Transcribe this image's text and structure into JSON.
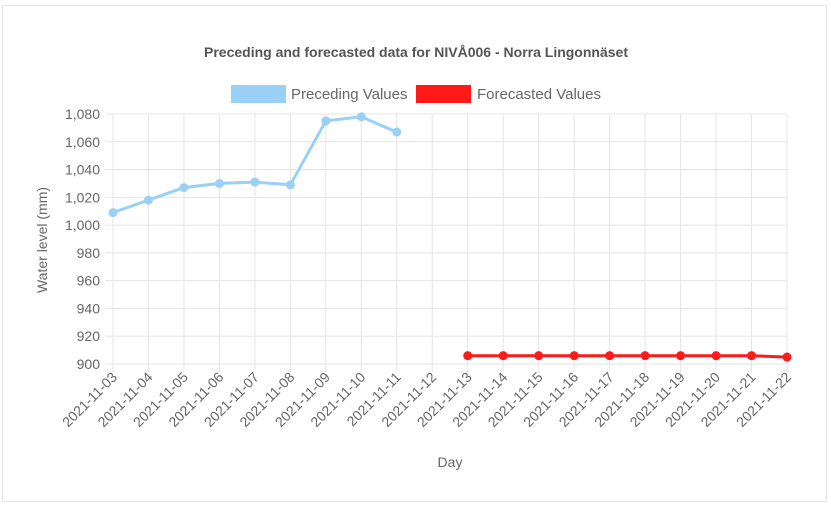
{
  "chart_data": {
    "type": "line",
    "title": "Preceding and forecasted data for NIVÅ006 - Norra Lingonnäset",
    "xlabel": "Day",
    "ylabel": "Water level (mm)",
    "ylim": [
      900,
      1080
    ],
    "y_ticks": [
      "900",
      "920",
      "940",
      "960",
      "980",
      "1,000",
      "1,020",
      "1,040",
      "1,060",
      "1,080"
    ],
    "grid": true,
    "legend_position": "top",
    "categories": [
      "2021-11-03",
      "2021-11-04",
      "2021-11-05",
      "2021-11-06",
      "2021-11-07",
      "2021-11-08",
      "2021-11-09",
      "2021-11-10",
      "2021-11-11",
      "2021-11-12",
      "2021-11-13",
      "2021-11-14",
      "2021-11-15",
      "2021-11-16",
      "2021-11-17",
      "2021-11-18",
      "2021-11-19",
      "2021-11-20",
      "2021-11-21",
      "2021-11-22"
    ],
    "series": [
      {
        "name": "Preceding Values",
        "color": "#9ad0f5",
        "values": [
          1009,
          1018,
          1027,
          1030,
          1031,
          1029,
          1075,
          1078,
          1067,
          null,
          null,
          null,
          null,
          null,
          null,
          null,
          null,
          null,
          null,
          null
        ]
      },
      {
        "name": "Forecasted Values",
        "color": "#ff1a1a",
        "values": [
          null,
          null,
          null,
          null,
          null,
          null,
          null,
          null,
          null,
          null,
          906,
          906,
          906,
          906,
          906,
          906,
          906,
          906,
          906,
          905
        ]
      }
    ]
  }
}
